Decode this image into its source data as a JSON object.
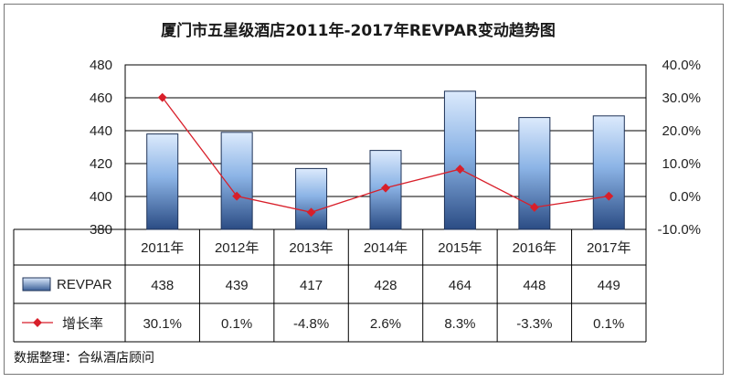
{
  "chart_data": {
    "type": "bar+line",
    "title": "厦门市五星级酒店2011年-2017年REVPAR变动趋势图",
    "categories": [
      "2011年",
      "2012年",
      "2013年",
      "2014年",
      "2015年",
      "2016年",
      "2017年"
    ],
    "series": [
      {
        "name": "REVPAR",
        "type": "bar",
        "axis": "left",
        "values": [
          438,
          439,
          417,
          428,
          464,
          448,
          449
        ],
        "labels": [
          "438",
          "439",
          "417",
          "428",
          "464",
          "448",
          "449"
        ]
      },
      {
        "name": "增长率",
        "type": "line",
        "axis": "right",
        "values": [
          30.1,
          0.1,
          -4.8,
          2.6,
          8.3,
          -3.3,
          0.1
        ],
        "labels": [
          "30.1%",
          "0.1%",
          "-4.8%",
          "2.6%",
          "8.3%",
          "-3.3%",
          "0.1%"
        ]
      }
    ],
    "left_axis": {
      "ylim": [
        380,
        480
      ],
      "ticks": [
        "380",
        "400",
        "420",
        "440",
        "460",
        "480"
      ]
    },
    "right_axis": {
      "ylim": [
        -10,
        40
      ],
      "ticks": [
        "-10.0%",
        "0.0%",
        "10.0%",
        "20.0%",
        "30.0%",
        "40.0%"
      ]
    },
    "grid": true,
    "data_table": true,
    "colors": {
      "bar_top": "#d8e8fb",
      "bar_bottom": "#2d4f86",
      "line": "#d81f2a",
      "grid": "#000000"
    }
  },
  "source_note": "数据整理：合纵酒店顾问"
}
